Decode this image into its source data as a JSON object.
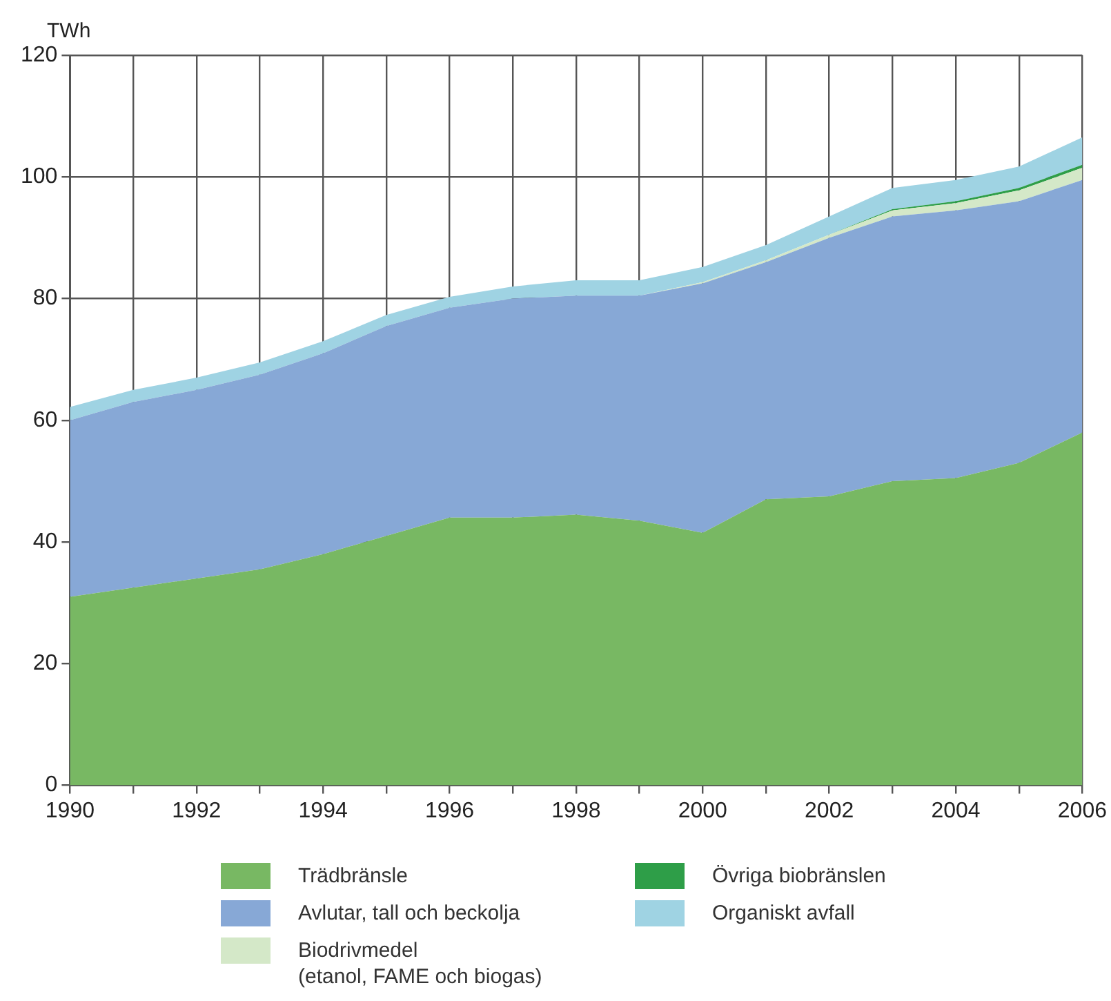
{
  "chart_data": {
    "type": "area",
    "ylabel": "TWh",
    "stacked": true,
    "grid": true,
    "legend": "bottom",
    "marker": "none",
    "x": [
      1990,
      1991,
      1992,
      1993,
      1994,
      1995,
      1996,
      1997,
      1998,
      1999,
      2000,
      2001,
      2002,
      2003,
      2004,
      2005,
      2006
    ],
    "xlim": [
      1990,
      2006
    ],
    "xticks": [
      1990,
      {
        "value": 1991,
        "label": null
      },
      1992,
      {
        "value": 1993,
        "label": null
      },
      1994,
      {
        "value": 1995,
        "label": null
      },
      1996,
      {
        "value": 1997,
        "label": null
      },
      1998,
      {
        "value": 1999,
        "label": null
      },
      2000,
      {
        "value": 2001,
        "label": null
      },
      2002,
      {
        "value": 2003,
        "label": null
      },
      2004,
      {
        "value": 2005,
        "label": null
      },
      2006
    ],
    "ylim": [
      0,
      120
    ],
    "yticks": [
      0,
      20,
      40,
      60,
      80,
      100,
      120
    ],
    "series": [
      {
        "name": "Trädbränsle",
        "color": "#78b863",
        "values": [
          31,
          32.5,
          34,
          35.5,
          38,
          41,
          44,
          44,
          44.5,
          43.5,
          41.5,
          47,
          47.5,
          50,
          50.5,
          53,
          58
        ]
      },
      {
        "name": "Avlutar, tall och beckolja",
        "color": "#87a8d6",
        "values": [
          29,
          30.5,
          31,
          32,
          33,
          34.5,
          34.5,
          36,
          36,
          37,
          41,
          39,
          42.5,
          43.5,
          44,
          43,
          41.5
        ]
      },
      {
        "name": "Biodrivmedel\n(etanol, FAME och biogas)",
        "color": "#d4e8c8",
        "values": [
          0,
          0,
          0,
          0,
          0,
          0,
          0,
          0,
          0,
          0,
          0.2,
          0.3,
          0.5,
          1,
          1.2,
          1.8,
          2
        ]
      },
      {
        "name": "Övriga biobränslen",
        "color": "#2e9e48",
        "values": [
          0,
          0,
          0,
          0,
          0,
          0,
          0,
          0,
          0,
          0,
          0,
          0,
          0,
          0.2,
          0.3,
          0.4,
          0.5
        ]
      },
      {
        "name": "Organiskt avfall",
        "color": "#9fd3e3",
        "values": [
          2.2,
          2,
          2,
          2,
          2,
          1.8,
          1.8,
          2,
          2.5,
          2.5,
          2.5,
          2.5,
          3,
          3.5,
          3.5,
          3.5,
          4.5
        ]
      }
    ]
  }
}
